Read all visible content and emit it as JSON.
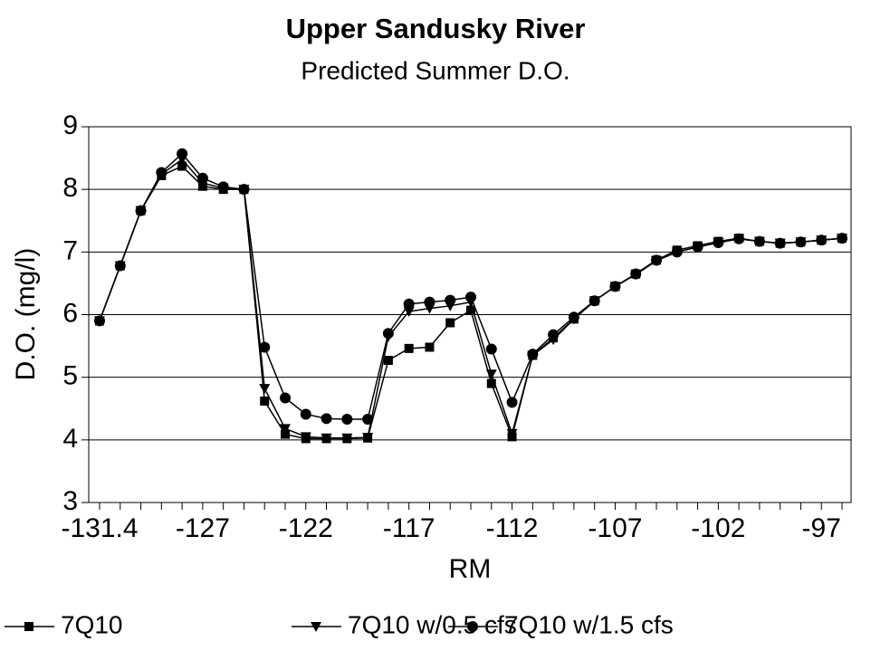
{
  "chart_data": {
    "type": "line",
    "title": "Upper Sandusky River",
    "subtitle": "Predicted Summer D.O.",
    "x_label": "RM",
    "y_label": "D.O. (mg/l)",
    "categories": [
      "-131.4",
      null,
      null,
      null,
      null,
      "-127",
      null,
      null,
      null,
      null,
      "-122",
      null,
      null,
      null,
      null,
      "-117",
      null,
      null,
      null,
      null,
      "-112",
      null,
      null,
      null,
      null,
      "-107",
      null,
      null,
      null,
      null,
      "-102",
      null,
      null,
      null,
      null,
      "-97",
      null
    ],
    "series": [
      {
        "name": "7Q10",
        "color": "#000000",
        "marker": "square",
        "values": [
          5.9,
          6.78,
          7.66,
          8.22,
          8.37,
          8.05,
          8.0,
          8.0,
          4.62,
          4.09,
          4.02,
          4.02,
          4.02,
          4.03,
          5.27,
          5.46,
          5.48,
          5.87,
          6.07,
          4.9,
          4.05,
          5.35,
          5.63,
          5.93,
          6.22,
          6.45,
          6.65,
          6.87,
          7.03,
          7.1,
          7.17,
          7.22,
          7.17,
          7.14,
          7.16,
          7.19,
          7.22
        ]
      },
      {
        "name": "7Q10 w/0.5 cfs",
        "color": "#000000",
        "marker": "triangle-down",
        "values": [
          5.9,
          6.78,
          7.66,
          8.24,
          8.48,
          8.1,
          8.02,
          8.0,
          4.82,
          4.18,
          4.05,
          4.03,
          4.03,
          4.04,
          5.65,
          6.05,
          6.1,
          6.14,
          6.2,
          5.05,
          4.1,
          5.35,
          5.6,
          5.93,
          6.22,
          6.45,
          6.64,
          6.86,
          7.0,
          7.08,
          7.15,
          7.21,
          7.17,
          7.14,
          7.16,
          7.19,
          7.22
        ]
      },
      {
        "name": "7Q10 w/1.5 cfs",
        "color": "#000000",
        "marker": "circle",
        "values": [
          5.9,
          6.78,
          7.66,
          8.27,
          8.57,
          8.18,
          8.04,
          8.0,
          5.48,
          4.67,
          4.41,
          4.34,
          4.33,
          4.33,
          5.7,
          6.17,
          6.2,
          6.23,
          6.28,
          5.45,
          4.6,
          5.37,
          5.68,
          5.96,
          6.22,
          6.45,
          6.65,
          6.87,
          7.0,
          7.08,
          7.15,
          7.21,
          7.17,
          7.14,
          7.16,
          7.19,
          7.22
        ]
      }
    ],
    "ylim": [
      3,
      9
    ],
    "yticks": [
      3,
      4,
      5,
      6,
      7,
      8,
      9
    ],
    "grid": true,
    "legend": "bottom"
  }
}
